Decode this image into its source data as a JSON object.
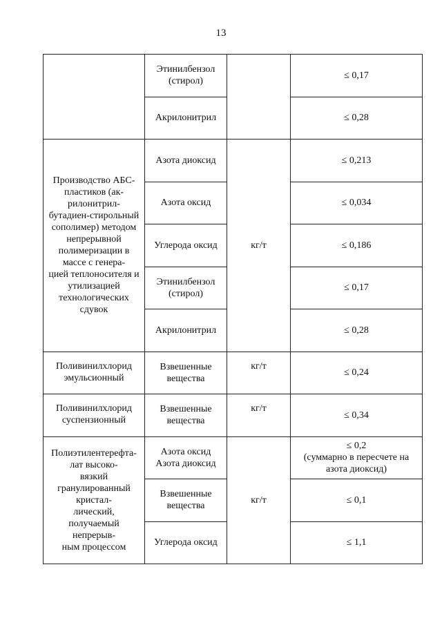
{
  "page_number": "13",
  "table": {
    "groups": [
      {
        "rows": [
          {
            "substance": "Этинилбензол\n(стирол)",
            "value": "≤ 0,17"
          },
          {
            "substance": "Акрилонитрил",
            "value": "≤ 0,28"
          }
        ]
      },
      {
        "production": "Производство АБС-\nпластиков (ак-\nрилонитрил-\nбутадиен-стирольный\nсополимер) методом\nнепрерывной\nполимеризации в\nмассе с генера-\nцией теплоносителя и\nутилизацией\nтехнологических\nсдувок",
        "unit": "кг/т",
        "rows": [
          {
            "substance": "Азота диоксид",
            "value": "≤ 0,213"
          },
          {
            "substance": "Азота оксид",
            "value": "≤ 0,034"
          },
          {
            "substance": "Углерода оксид",
            "value": "≤ 0,186"
          },
          {
            "substance": "Этинилбензол\n(стирол)",
            "value": "≤ 0,17"
          },
          {
            "substance": "Акрилонитрил",
            "value": "≤ 0,28"
          }
        ]
      },
      {
        "production": "Поливинилхлорид\nэмульсионный",
        "unit": "кг/т",
        "rows": [
          {
            "substance": "Взвешенные\nвещества",
            "value": "≤ 0,24"
          }
        ]
      },
      {
        "production": "Поливинилхлорид\nсуспензионный",
        "unit": "кг/т",
        "rows": [
          {
            "substance": "Взвешенные\nвещества",
            "value": "≤ 0,34"
          }
        ]
      },
      {
        "production": "Полиэтилентерефта-\nлат высоко-\nвязкий\nгранулированный\nкристал-\nлический,\nполучаемый\nнепрерыв-\nным процессом",
        "unit": "кг/т",
        "rows": [
          {
            "substance": "Азота оксид\nАзота диоксид",
            "value": "≤ 0,2\n(суммарно в пересчете на\nазота диоксид)"
          },
          {
            "substance": "Взвешенные\nвещества",
            "value": "≤ 0,1"
          },
          {
            "substance": "Углерода оксид",
            "value": "≤ 1,1"
          }
        ]
      }
    ]
  }
}
